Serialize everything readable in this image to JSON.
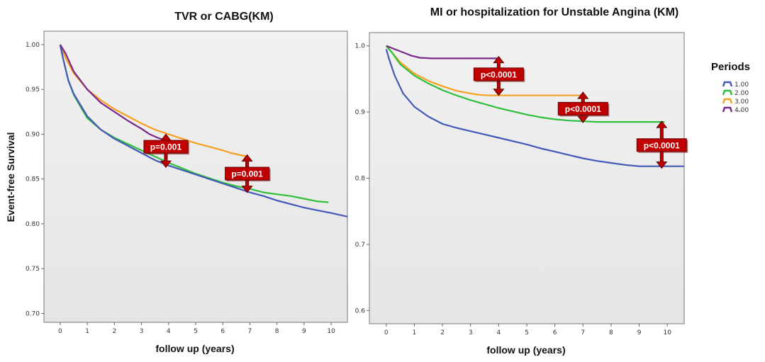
{
  "figure": {
    "ylabel": "Event-free Survival",
    "legend": {
      "title": "Periods",
      "entries": [
        {
          "label": "1.00",
          "color": "#4458b8"
        },
        {
          "label": "2.00",
          "color": "#2fbf3a"
        },
        {
          "label": "3.00",
          "color": "#f5a020"
        },
        {
          "label": "4.00",
          "color": "#7a2a8a"
        }
      ],
      "more": "..."
    }
  },
  "chart_data": [
    {
      "type": "line",
      "title": "TVR or CABG(KM)",
      "xlabel": "follow up (years)",
      "ylabel": "Event-free Survival",
      "xlim": [
        -0.6,
        10.6
      ],
      "ylim": [
        0.69,
        1.015
      ],
      "xticks": [
        0,
        1,
        2,
        3,
        4,
        5,
        6,
        7,
        8,
        9,
        10
      ],
      "yticks": [
        0.7,
        0.75,
        0.8,
        0.85,
        0.9,
        0.95,
        1.0
      ],
      "ytick_labels": [
        "0.70",
        "0.75",
        "0.80",
        "0.85",
        "0.90",
        "0.95",
        "1.00"
      ],
      "grid": false,
      "series": [
        {
          "name": "1.00",
          "color": "#4458b8",
          "x": [
            0,
            0.1,
            0.3,
            0.5,
            0.8,
            1.0,
            1.5,
            2.0,
            2.5,
            3.0,
            3.5,
            4.0,
            4.5,
            5.0,
            5.5,
            6.0,
            6.5,
            7.0,
            7.5,
            8.0,
            8.5,
            9.0,
            9.5,
            10.0,
            10.6
          ],
          "y": [
            1.0,
            0.985,
            0.96,
            0.945,
            0.93,
            0.92,
            0.905,
            0.895,
            0.887,
            0.879,
            0.871,
            0.865,
            0.86,
            0.855,
            0.85,
            0.845,
            0.84,
            0.835,
            0.831,
            0.826,
            0.822,
            0.818,
            0.815,
            0.812,
            0.808
          ]
        },
        {
          "name": "2.00",
          "color": "#2fbf3a",
          "x": [
            0,
            0.1,
            0.3,
            0.5,
            0.8,
            1.0,
            1.5,
            2.0,
            2.5,
            3.0,
            3.5,
            4.0,
            4.5,
            5.0,
            5.5,
            6.0,
            6.5,
            7.0,
            7.5,
            8.0,
            8.5,
            9.0,
            9.5,
            9.9
          ],
          "y": [
            1.0,
            0.985,
            0.96,
            0.944,
            0.928,
            0.918,
            0.905,
            0.896,
            0.889,
            0.882,
            0.875,
            0.868,
            0.862,
            0.856,
            0.851,
            0.846,
            0.842,
            0.839,
            0.835,
            0.833,
            0.831,
            0.828,
            0.825,
            0.824
          ]
        },
        {
          "name": "3.00",
          "color": "#f5a020",
          "x": [
            0,
            0.2,
            0.5,
            1.0,
            1.5,
            2.0,
            2.5,
            3.0,
            3.5,
            4.0,
            4.5,
            5.0,
            5.5,
            6.0,
            6.3,
            6.6,
            6.9
          ],
          "y": [
            1.0,
            0.985,
            0.968,
            0.95,
            0.938,
            0.928,
            0.92,
            0.912,
            0.905,
            0.9,
            0.895,
            0.89,
            0.886,
            0.882,
            0.879,
            0.877,
            0.875
          ]
        },
        {
          "name": "4.00",
          "color": "#7a2a8a",
          "x": [
            0,
            0.2,
            0.5,
            1.0,
            1.5,
            2.0,
            2.5,
            3.0,
            3.3,
            3.6,
            3.9
          ],
          "y": [
            1.0,
            0.99,
            0.97,
            0.95,
            0.935,
            0.925,
            0.915,
            0.906,
            0.9,
            0.896,
            0.893
          ]
        }
      ],
      "annotations": [
        {
          "text": "p=0.001",
          "x": 3.9,
          "y": 0.886,
          "arrow_top": 0.9,
          "arrow_bottom": 0.863
        },
        {
          "text": "p=0.001",
          "x": 6.9,
          "y": 0.856,
          "arrow_top": 0.877,
          "arrow_bottom": 0.835
        }
      ]
    },
    {
      "type": "line",
      "title": "MI or hospitalization for Unstable Angina (KM)",
      "xlabel": "follow up (years)",
      "ylabel": "",
      "xlim": [
        -0.6,
        10.6
      ],
      "ylim": [
        0.58,
        1.02
      ],
      "xticks": [
        0,
        1,
        2,
        3,
        4,
        5,
        6,
        7,
        8,
        9,
        10
      ],
      "yticks": [
        0.6,
        0.7,
        0.8,
        0.9,
        1.0
      ],
      "ytick_labels": [
        "0.6",
        "0.7",
        "0.8",
        "0.9",
        "1.0"
      ],
      "grid": false,
      "series": [
        {
          "name": "1.00",
          "color": "#4458b8",
          "x": [
            0,
            0.1,
            0.3,
            0.6,
            1.0,
            1.5,
            2.0,
            2.5,
            3.0,
            3.5,
            4.0,
            4.5,
            5.0,
            5.5,
            6.0,
            6.5,
            7.0,
            7.5,
            8.0,
            8.5,
            9.0,
            9.5,
            10.0,
            10.6
          ],
          "y": [
            0.995,
            0.98,
            0.955,
            0.928,
            0.908,
            0.893,
            0.882,
            0.876,
            0.871,
            0.866,
            0.861,
            0.856,
            0.851,
            0.845,
            0.84,
            0.835,
            0.83,
            0.826,
            0.823,
            0.82,
            0.818,
            0.818,
            0.818,
            0.818
          ]
        },
        {
          "name": "2.00",
          "color": "#2fbf3a",
          "x": [
            0,
            0.2,
            0.5,
            1.0,
            1.5,
            2.0,
            2.5,
            3.0,
            3.5,
            4.0,
            4.5,
            5.0,
            5.5,
            6.0,
            6.5,
            7.0,
            7.5,
            8.0,
            8.5,
            9.0,
            9.5,
            9.9
          ],
          "y": [
            1.0,
            0.99,
            0.972,
            0.955,
            0.943,
            0.933,
            0.925,
            0.918,
            0.912,
            0.906,
            0.901,
            0.896,
            0.892,
            0.889,
            0.887,
            0.886,
            0.885,
            0.885,
            0.885,
            0.885,
            0.885,
            0.885
          ]
        },
        {
          "name": "3.00",
          "color": "#f5a020",
          "x": [
            0,
            0.2,
            0.5,
            1.0,
            1.5,
            2.0,
            2.5,
            3.0,
            3.3,
            3.6,
            4.0,
            5.0,
            6.0,
            7.0
          ],
          "y": [
            1.0,
            0.99,
            0.975,
            0.958,
            0.947,
            0.939,
            0.932,
            0.928,
            0.926,
            0.925,
            0.925,
            0.925,
            0.925,
            0.925
          ]
        },
        {
          "name": "4.00",
          "color": "#7a2a8a",
          "x": [
            0,
            0.3,
            0.6,
            0.9,
            1.2,
            1.6,
            2.0,
            3.0,
            4.0
          ],
          "y": [
            1.0,
            0.995,
            0.99,
            0.985,
            0.982,
            0.981,
            0.981,
            0.981,
            0.981
          ]
        }
      ],
      "annotations": [
        {
          "text": "p<0.0001",
          "x": 4.0,
          "y": 0.957,
          "arrow_top": 0.984,
          "arrow_bottom": 0.925
        },
        {
          "text": "p<0.0001",
          "x": 7.0,
          "y": 0.905,
          "arrow_top": 0.93,
          "arrow_bottom": 0.884
        },
        {
          "text": "p<0.0001",
          "x": 9.8,
          "y": 0.85,
          "arrow_top": 0.886,
          "arrow_bottom": 0.815
        }
      ]
    }
  ]
}
